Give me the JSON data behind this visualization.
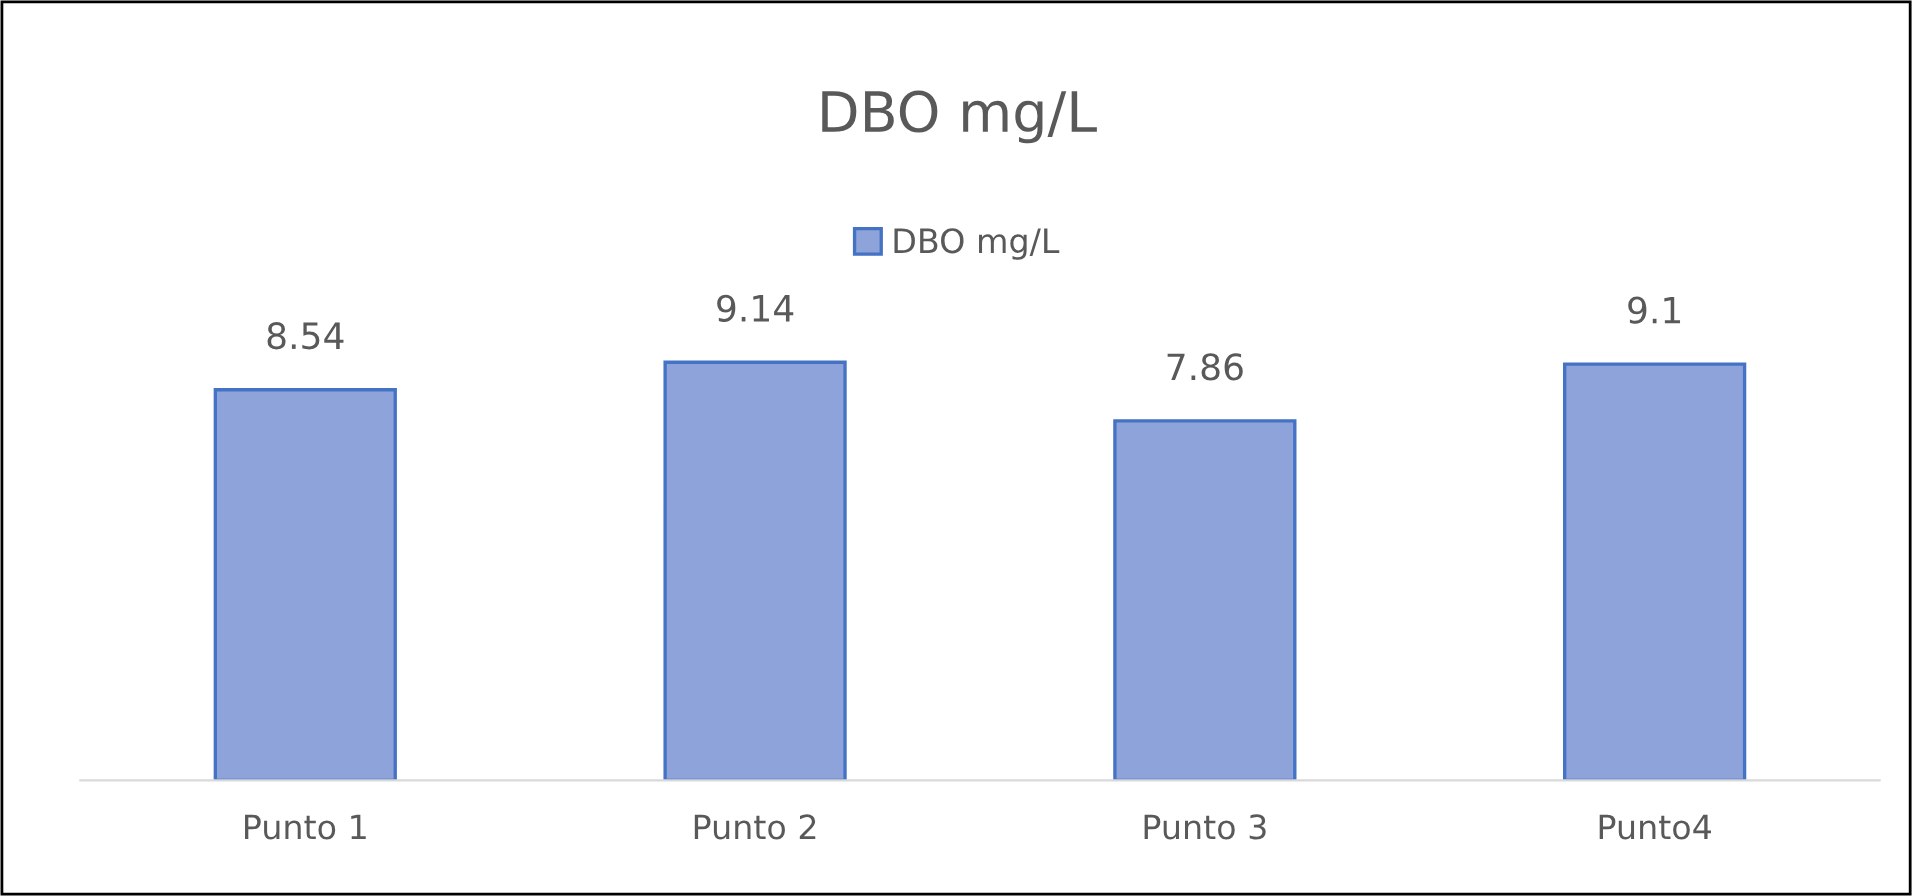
{
  "chart_data": {
    "type": "bar",
    "title": "DBO mg/L",
    "categories": [
      "Punto 1",
      "Punto 2",
      "Punto 3",
      "Punto4"
    ],
    "series": [
      {
        "name": "DBO mg/L",
        "color": "#8fa3db",
        "values": [
          8.54,
          9.14,
          7.86,
          9.1
        ]
      }
    ],
    "tick_labels": "x",
    "data_labels": true,
    "legend": "top",
    "grid": false
  }
}
